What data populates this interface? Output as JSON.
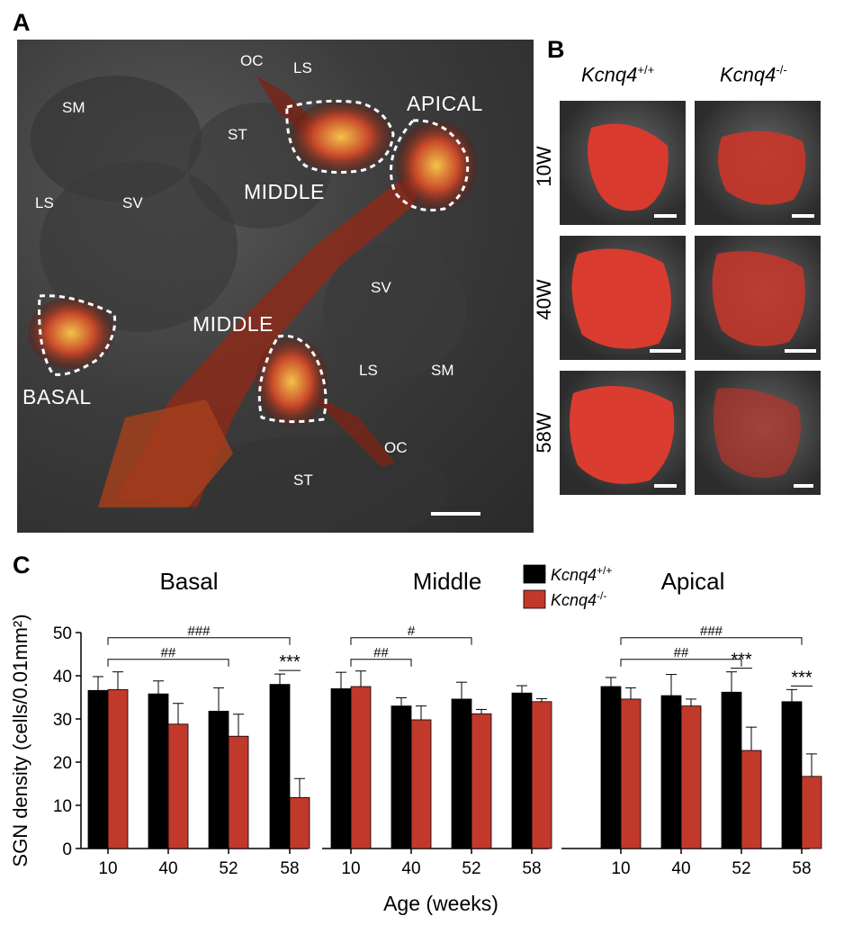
{
  "panels": {
    "a": "A",
    "b": "B",
    "c": "C"
  },
  "panel_a": {
    "labels": {
      "oc_top": "OC",
      "ls_top": "LS",
      "sm_left": "SM",
      "apical": "APICAL",
      "st_top": "ST",
      "middle_top": "MIDDLE",
      "ls_left": "LS",
      "sv_left": "SV",
      "sv_right": "SV",
      "middle_bottom": "MIDDLE",
      "ls_right": "LS",
      "sm_right": "SM",
      "basal": "BASAL",
      "oc_bottom": "OC",
      "st_bottom": "ST"
    }
  },
  "panel_b": {
    "col_wt_italic": "Kcnq4",
    "col_wt_sup": "+/+",
    "col_ko_italic": "Kcnq4",
    "col_ko_sup": "-/-",
    "rows": [
      "10W",
      "40W",
      "58W"
    ]
  },
  "colors": {
    "wt": "#000000",
    "ko": "#c0392b"
  },
  "chart_data": {
    "type": "bar",
    "ylabel": "SGN density (cells/0.01mm²)",
    "xlabel": "Age (weeks)",
    "ylim": [
      0,
      50
    ],
    "yticks": [
      0,
      10,
      20,
      30,
      40,
      50
    ],
    "categories": [
      "10",
      "40",
      "52",
      "58"
    ],
    "legend": [
      "Kcnq4+/+",
      "Kcnq4-/-"
    ],
    "legend_items": [
      {
        "italic": "Kcnq4",
        "sup": "+/+"
      },
      {
        "italic": "Kcnq4",
        "sup": "-/-"
      }
    ],
    "groups": [
      {
        "title": "Basal",
        "series": [
          {
            "values": [
              36.6,
              35.8,
              31.8,
              38.0
            ],
            "errors": [
              3.2,
              3.0,
              5.4,
              2.4
            ]
          },
          {
            "values": [
              36.8,
              28.8,
              26.0,
              11.8
            ],
            "errors": [
              4.1,
              4.8,
              5.1,
              4.4
            ]
          }
        ],
        "brackets": [
          {
            "from": 0,
            "to": 3,
            "level": 48.8,
            "label": "###"
          },
          {
            "from": 0,
            "to": 2,
            "level": 43.8,
            "label": "##"
          }
        ],
        "sig": [
          {
            "cat": 3,
            "label": "***"
          }
        ]
      },
      {
        "title": "Middle",
        "series": [
          {
            "values": [
              37.0,
              33.0,
              34.6,
              36.0
            ],
            "errors": [
              3.8,
              1.9,
              3.9,
              1.7
            ]
          },
          {
            "values": [
              37.5,
              29.8,
              31.2,
              34.0
            ],
            "errors": [
              3.6,
              3.2,
              1.0,
              0.7
            ]
          }
        ],
        "brackets": [
          {
            "from": 0,
            "to": 2,
            "level": 48.8,
            "label": "#"
          },
          {
            "from": 0,
            "to": 1,
            "level": 43.8,
            "label": "##"
          }
        ],
        "sig": []
      },
      {
        "title": "Apical",
        "series": [
          {
            "values": [
              37.5,
              35.4,
              36.2,
              34.0
            ],
            "errors": [
              2.1,
              4.9,
              4.7,
              2.8
            ]
          },
          {
            "values": [
              34.6,
              33.0,
              22.7,
              16.7
            ],
            "errors": [
              2.6,
              1.6,
              5.4,
              5.2
            ]
          }
        ],
        "brackets": [
          {
            "from": 0,
            "to": 3,
            "level": 48.8,
            "label": "###"
          },
          {
            "from": 0,
            "to": 2,
            "level": 43.8,
            "label": "##"
          }
        ],
        "sig": [
          {
            "cat": 2,
            "label": "***"
          },
          {
            "cat": 3,
            "label": "***"
          }
        ]
      }
    ]
  }
}
